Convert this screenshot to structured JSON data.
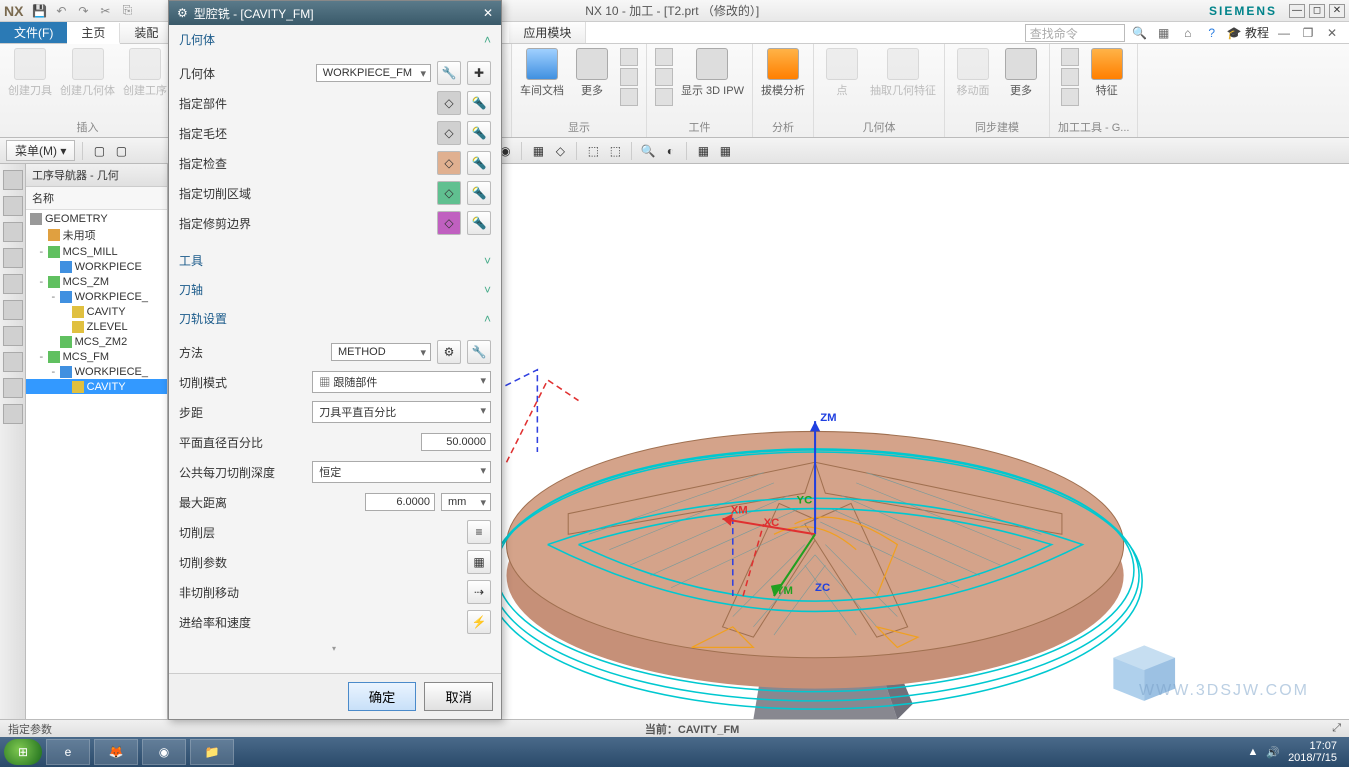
{
  "app": {
    "logo": "NX",
    "title": "NX 10 - 加工 - [T2.prt （修改的）]",
    "brand": "SIEMENS"
  },
  "menubar": {
    "file": "文件(F)",
    "tabs": [
      "主页",
      "装配"
    ],
    "right_tab": "应用模块",
    "search_placeholder": "查找命令",
    "tutorial": "教程"
  },
  "ribbon": {
    "groups": [
      {
        "label": "插入",
        "buttons": [
          {
            "label": "创建刀具",
            "disabled": true
          },
          {
            "label": "创建几何体",
            "disabled": true
          },
          {
            "label": "创建工序",
            "disabled": true
          }
        ]
      },
      {
        "label": "",
        "buttons": []
      },
      {
        "label": "显示",
        "buttons": [
          {
            "label": "车间文档"
          },
          {
            "label": "更多"
          }
        ]
      },
      {
        "label": "工件",
        "buttons": [
          {
            "label": "显示 3D IPW"
          }
        ]
      },
      {
        "label": "分析",
        "buttons": [
          {
            "label": "拔模分析"
          }
        ]
      },
      {
        "label": "几何体",
        "buttons": [
          {
            "label": "点",
            "disabled": true
          },
          {
            "label": "抽取几何特征",
            "disabled": true
          }
        ]
      },
      {
        "label": "同步建模",
        "buttons": [
          {
            "label": "移动面",
            "disabled": true
          },
          {
            "label": "更多"
          }
        ]
      },
      {
        "label": "加工工具 - G...",
        "buttons": [
          {
            "label": "特征"
          }
        ]
      }
    ]
  },
  "toolbar": {
    "menu_btn": "菜单(M)"
  },
  "navigator": {
    "title": "工序导航器 - 几何",
    "col": "名称",
    "tree": [
      {
        "label": "GEOMETRY",
        "level": 0
      },
      {
        "label": "未用项",
        "level": 1,
        "icon": "#e0a040"
      },
      {
        "label": "MCS_MILL",
        "level": 1,
        "twisty": "-",
        "icon": "#60c060"
      },
      {
        "label": "WORKPIECE",
        "level": 2,
        "icon": "#4090e0"
      },
      {
        "label": "MCS_ZM",
        "level": 1,
        "twisty": "-",
        "icon": "#60c060"
      },
      {
        "label": "WORKPIECE_",
        "level": 2,
        "twisty": "-",
        "icon": "#4090e0"
      },
      {
        "label": "CAVITY",
        "level": 3,
        "icon": "#e0c040"
      },
      {
        "label": "ZLEVEL",
        "level": 3,
        "icon": "#e0c040"
      },
      {
        "label": "MCS_ZM2",
        "level": 2,
        "icon": "#60c060"
      },
      {
        "label": "MCS_FM",
        "level": 1,
        "twisty": "-",
        "icon": "#60c060"
      },
      {
        "label": "WORKPIECE_",
        "level": 2,
        "twisty": "-",
        "icon": "#4090e0"
      },
      {
        "label": "CAVITY",
        "level": 3,
        "icon": "#e0c040",
        "selected": true
      }
    ]
  },
  "dialog": {
    "title": "型腔铣 - [CAVITY_FM]",
    "sections": {
      "geometry": {
        "title": "几何体",
        "body_label": "几何体",
        "body_value": "WORKPIECE_FM",
        "rows": [
          "指定部件",
          "指定毛坯",
          "指定检查",
          "指定切削区域",
          "指定修剪边界"
        ]
      },
      "tool": {
        "title": "工具"
      },
      "axis": {
        "title": "刀轴"
      },
      "path": {
        "title": "刀轨设置",
        "method_label": "方法",
        "method_value": "METHOD",
        "cut_pattern_label": "切削模式",
        "cut_pattern_value": "跟随部件",
        "stepover_label": "步距",
        "stepover_value": "刀具平直百分比",
        "percent_label": "平面直径百分比",
        "percent_value": "50.0000",
        "depth_label": "公共每刀切削深度",
        "depth_value": "恒定",
        "maxdist_label": "最大距离",
        "maxdist_value": "6.0000",
        "maxdist_unit": "mm",
        "cut_levels": "切削层",
        "cut_params": "切削参数",
        "noncut": "非切削移动",
        "feeds": "进给率和速度"
      }
    },
    "ok": "确定",
    "cancel": "取消"
  },
  "viewport": {
    "axes": {
      "zm": "ZM",
      "xm": "XM",
      "xc": "XC",
      "yc": "YC",
      "ym": "YM",
      "zc": "ZC"
    },
    "colors": {
      "part_top": "#d4a38a",
      "part_side": "#c69078",
      "base": "#888890",
      "toolpath": "#00c8d0",
      "toolpath2": "#f0a020",
      "rapid_red": "#e03030",
      "rapid_blue": "#3040e0",
      "hatch": "#7a9a9a"
    }
  },
  "status": {
    "left": "指定参数",
    "current": "当前：CAVITY_FM"
  },
  "taskbar": {
    "time": "17:07",
    "date": "2018/7/15"
  },
  "watermark": "WWW.3DSJW.COM"
}
